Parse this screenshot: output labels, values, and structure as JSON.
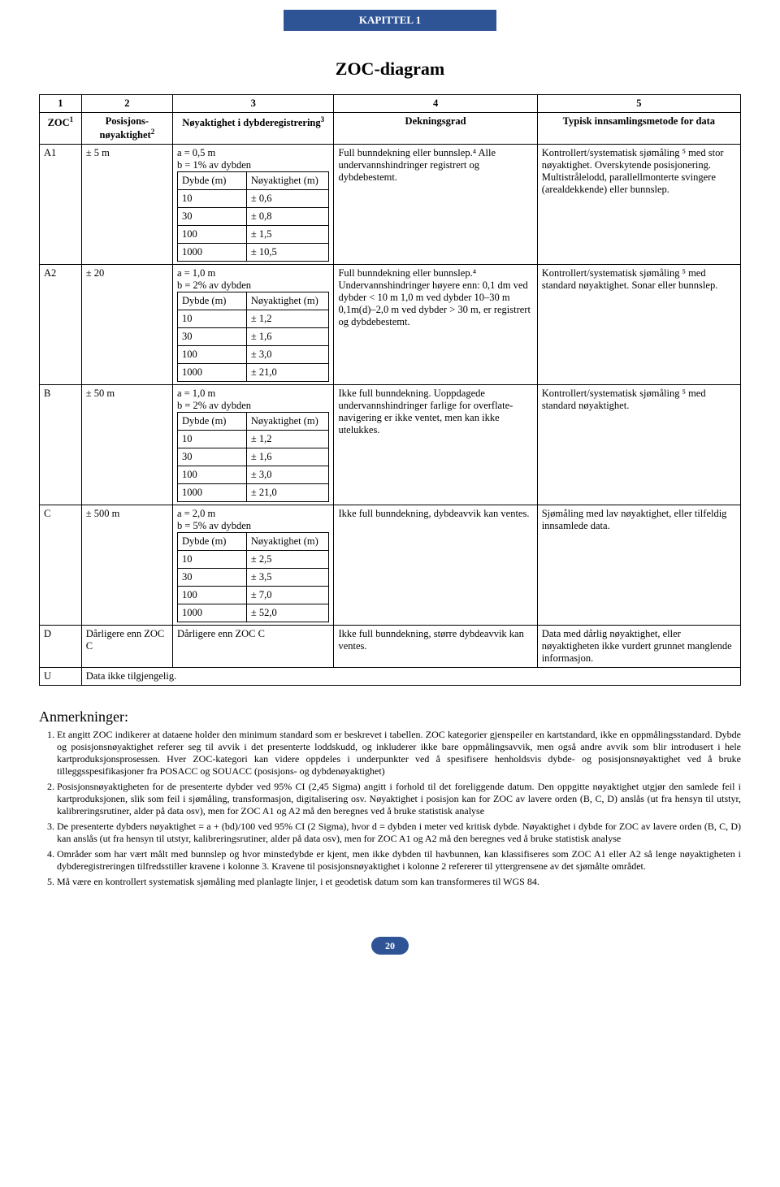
{
  "chapter_tab": "KAPITTEL 1",
  "title": "ZOC-diagram",
  "page_number": "20",
  "columns": {
    "c1": "1",
    "c2": "2",
    "c3": "3",
    "c4": "4",
    "c5": "5"
  },
  "headers": {
    "zoc": "ZOC",
    "zoc_sup": "1",
    "pos": "Posisjons-nøyaktighet",
    "pos_sup": "2",
    "depth": "Nøyaktighet i dybderegistrering",
    "depth_sup": "3",
    "cov": "Dekningsgrad",
    "method": "Typisk innsamlingsmetode for data"
  },
  "sub": {
    "dybde": "Dybde (m)",
    "noy": "Nøyaktighet (m)"
  },
  "rows": {
    "A1": {
      "zoc": "A1",
      "pos": "± 5 m",
      "a": "a =  0,5 m",
      "b": "b = 1% av dybden",
      "t": [
        [
          "10",
          "± 0,6"
        ],
        [
          "30",
          "± 0,8"
        ],
        [
          "100",
          "± 1,5"
        ],
        [
          "1000",
          "± 10,5"
        ]
      ],
      "cov": "Full bunndekning eller bunnslep.⁴ Alle undervannshindringer registrert og dybdebestemt.",
      "met": "Kontrollert/systematisk sjømåling ⁵ med stor nøyaktighet. Overskytende posisjonering. Multistrålelodd, parallellmonterte svingere (arealdekkende) eller bunnslep."
    },
    "A2": {
      "zoc": "A2",
      "pos": "± 20",
      "a": "a = 1,0 m",
      "b": "b = 2% av dybden",
      "t": [
        [
          "10",
          "± 1,2"
        ],
        [
          "30",
          "± 1,6"
        ],
        [
          "100",
          "± 3,0"
        ],
        [
          "1000",
          "± 21,0"
        ]
      ],
      "cov": "Full bunndekning eller bunnslep.⁴ Undervannshindringer høyere enn: 0,1 dm ved dybder < 10 m 1,0 m ved dybder 10–30 m 0,1m(d)–2,0 m ved dybder > 30 m, er registrert og dybdebestemt.",
      "met": "Kontrollert/systematisk sjømåling ⁵ med standard nøyaktighet. Sonar eller bunnslep."
    },
    "B": {
      "zoc": "B",
      "pos": "± 50 m",
      "a": "a = 1,0 m",
      "b": "b = 2% av dybden",
      "t": [
        [
          "10",
          "± 1,2"
        ],
        [
          "30",
          "± 1,6"
        ],
        [
          "100",
          "± 3,0"
        ],
        [
          "1000",
          "± 21,0"
        ]
      ],
      "cov": "Ikke full bunndekning. Uoppdagede undervannshindringer farlige for overflate- navigering er ikke ventet, men kan ikke utelukkes.",
      "met": "Kontrollert/systematisk sjømåling ⁵ med standard nøyaktighet."
    },
    "C": {
      "zoc": "C",
      "pos": "± 500 m",
      "a": "a = 2,0 m",
      "b": "b = 5% av dybden",
      "t": [
        [
          "10",
          "± 2,5"
        ],
        [
          "30",
          "± 3,5"
        ],
        [
          "100",
          "± 7,0"
        ],
        [
          "1000",
          "± 52,0"
        ]
      ],
      "cov": "Ikke full bunndekning, dybdeavvik kan ventes.",
      "met": "Sjømåling med lav nøyaktighet, eller tilfeldig innsamlede data."
    },
    "D": {
      "zoc": "D",
      "pos": "Dårligere enn ZOC C",
      "depth": "Dårligere enn ZOC C",
      "cov": "Ikke full bunndekning, større dybdeavvik kan ventes.",
      "met": "Data med dårlig nøyaktighet, eller nøyaktigheten ikke vurdert grunnet manglende informasjon."
    },
    "U": {
      "zoc": "U",
      "rest": "Data ikke tilgjengelig."
    }
  },
  "annot_head": "Anmerkninger:",
  "annot": [
    "Et angitt ZOC indikerer at dataene holder den minimum standard som er beskrevet i tabellen. ZOC kategorier gjenspeiler en kartstandard, ikke  en oppmålingsstandard. Dybde og posisjonsnøyaktighet referer seg til avvik i det presenterte loddskudd, og inkluderer ikke bare oppmålingsavvik, men også andre avvik som blir introdusert i hele kartproduksjonsprosessen. Hver ZOC-kategori kan videre oppdeles i underpunkter ved å spesifisere henholdsvis dybde- og posisjonsnøyaktighet ved å bruke tilleggsspesifikasjoner fra POSACC og SOUACC (posisjons- og dybdenøyaktighet)",
    "Posisjonsnøyaktigheten for de presenterte dybder ved 95% CI (2,45 Sigma) angitt i forhold til det foreliggende datum. Den oppgitte nøyaktighet utgjør den samlede feil i kartproduksjonen, slik som feil i sjømåling, transformasjon, digitalisering osv. Nøyaktighet i posisjon kan for ZOC av lavere orden (B, C, D) anslås (ut fra hensyn til utstyr, kalibreringsrutiner, alder på data osv), men for ZOC A1 og A2 må den beregnes ved å bruke statistisk analyse",
    "De presenterte dybders nøyaktighet  = a + (bd)/100 ved 95% CI (2 Sigma), hvor d = dybden i meter ved kritisk dybde. Nøyaktighet i dybde for ZOC av lavere orden (B, C, D) kan anslås (ut fra hensyn til utstyr, kalibreringsrutiner, alder på data osv), men for ZOC A1 og A2 må den beregnes ved å bruke statistisk analyse",
    "Områder som har vært målt med bunnslep og hvor minstedybde er kjent, men ikke dybden til havbunnen, kan klassifiseres som ZOC A1 eller A2 så lenge nøyaktigheten i dybderegistreringen tilfredsstiller kravene i kolonne 3. Kravene til posisjonsnøyaktighet i kolonne 2 refererer til yttergrensene av det sjømålte området.",
    "Må være en kontrollert systematisk sjømåling med planlagte linjer, i et geodetisk datum som kan transformeres til WGS 84."
  ]
}
